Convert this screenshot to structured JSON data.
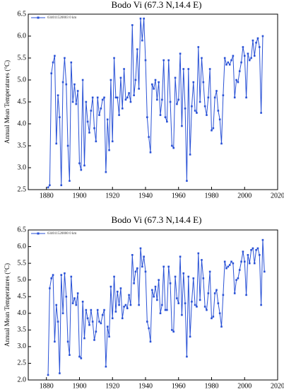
{
  "chart_data": [
    {
      "type": "line",
      "title": "Bodo Vi (67.3 N,14.4 E)",
      "y_label": "Annual Mean Temperatures (°C)",
      "x": [
        1881,
        1882,
        1883,
        1884,
        1885,
        1886,
        1887,
        1888,
        1889,
        1890,
        1891,
        1892,
        1893,
        1894,
        1895,
        1896,
        1897,
        1898,
        1899,
        1900,
        1901,
        1902,
        1903,
        1904,
        1905,
        1906,
        1907,
        1908,
        1909,
        1910,
        1911,
        1912,
        1913,
        1914,
        1915,
        1916,
        1917,
        1918,
        1919,
        1920,
        1921,
        1922,
        1923,
        1924,
        1925,
        1926,
        1927,
        1928,
        1929,
        1930,
        1931,
        1932,
        1933,
        1934,
        1935,
        1936,
        1937,
        1938,
        1939,
        1940,
        1941,
        1942,
        1943,
        1944,
        1945,
        1946,
        1947,
        1948,
        1949,
        1950,
        1951,
        1952,
        1953,
        1954,
        1955,
        1956,
        1957,
        1958,
        1959,
        1960,
        1961,
        1962,
        1963,
        1964,
        1965,
        1966,
        1967,
        1968,
        1969,
        1970,
        1971,
        1972,
        1973,
        1974,
        1975,
        1976,
        1977,
        1978,
        1979,
        1980,
        1981,
        1982,
        1983,
        1984,
        1985,
        1986,
        1987,
        1988,
        1989,
        1990,
        1991,
        1992,
        1993,
        1994,
        1995,
        1996,
        1997,
        1998,
        1999,
        2000,
        2001,
        2002,
        2003,
        2004,
        2005,
        2006,
        2007,
        2008,
        2009,
        2010,
        2011
      ],
      "series": [
        {
          "name": "634011520003 0 km",
          "color": "#2a52d6",
          "values": [
            2.55,
            2.6,
            5.15,
            5.4,
            5.55,
            3.55,
            4.65,
            4.15,
            2.6,
            4.95,
            5.5,
            4.9,
            3.5,
            2.7,
            5.4,
            4.5,
            4.9,
            4.45,
            4.75,
            3.1,
            2.95,
            5.0,
            3.05,
            4.5,
            4.05,
            3.8,
            4.3,
            4.6,
            3.9,
            3.6,
            4.6,
            4.2,
            4.35,
            4.55,
            4.6,
            2.9,
            4.1,
            3.4,
            5.0,
            3.6,
            5.5,
            4.6,
            4.6,
            4.2,
            5.05,
            4.35,
            5.25,
            4.55,
            4.6,
            4.7,
            4.5,
            6.25,
            4.65,
            5.0,
            5.7,
            4.8,
            6.4,
            5.9,
            6.4,
            5.45,
            4.15,
            3.7,
            3.35,
            4.9,
            4.8,
            5.0,
            4.55,
            4.95,
            4.2,
            4.55,
            5.45,
            4.15,
            4.05,
            5.45,
            4.5,
            3.5,
            3.45,
            5.05,
            4.45,
            4.55,
            5.6,
            3.95,
            5.25,
            4.35,
            2.7,
            5.25,
            3.3,
            4.4,
            4.95,
            4.3,
            4.25,
            5.75,
            4.5,
            5.5,
            4.95,
            4.4,
            4.2,
            4.6,
            5.25,
            3.85,
            3.9,
            4.6,
            4.75,
            4.3,
            4.1,
            3.55,
            4.65,
            5.5,
            5.35,
            5.4,
            5.35,
            5.45,
            5.55,
            4.6,
            5.0,
            4.95,
            5.2,
            5.4,
            5.75,
            5.55,
            4.6,
            5.6,
            5.45,
            5.5,
            5.9,
            5.55,
            5.85,
            5.95,
            5.75,
            4.25,
            6.0
          ]
        }
      ],
      "xlim": [
        1869,
        2020
      ],
      "xticks": [
        1880,
        1900,
        1920,
        1940,
        1960,
        1980,
        2000,
        2020
      ],
      "ylim": [
        2.5,
        6.5
      ],
      "yticks": [
        {
          "value": 2.5,
          "label": "2.5"
        },
        {
          "value": 3,
          "label": "3.0"
        },
        {
          "value": 3.5,
          "label": "3.5"
        },
        {
          "value": 4,
          "label": "4.0"
        },
        {
          "value": 4.5,
          "label": "4.5"
        },
        {
          "value": 5,
          "label": "5.0"
        },
        {
          "value": 5.5,
          "label": "5.5"
        },
        {
          "value": 6,
          "label": "6.0"
        },
        {
          "value": 6.5,
          "label": "6.5"
        }
      ]
    },
    {
      "type": "line",
      "title": "Bodo Vi (67.3 N,14.4 E)",
      "y_label": "Annual Mean Temperatures (°C)",
      "x": [
        1881,
        1882,
        1883,
        1884,
        1885,
        1886,
        1887,
        1888,
        1889,
        1890,
        1891,
        1892,
        1893,
        1894,
        1895,
        1896,
        1897,
        1898,
        1899,
        1900,
        1901,
        1902,
        1903,
        1904,
        1905,
        1906,
        1907,
        1908,
        1909,
        1910,
        1911,
        1912,
        1913,
        1914,
        1915,
        1916,
        1917,
        1918,
        1919,
        1920,
        1921,
        1922,
        1923,
        1924,
        1925,
        1926,
        1927,
        1928,
        1929,
        1930,
        1931,
        1932,
        1933,
        1934,
        1935,
        1936,
        1937,
        1938,
        1939,
        1940,
        1941,
        1942,
        1943,
        1944,
        1945,
        1946,
        1947,
        1948,
        1949,
        1950,
        1951,
        1952,
        1953,
        1954,
        1955,
        1956,
        1957,
        1958,
        1959,
        1960,
        1961,
        1962,
        1963,
        1964,
        1965,
        1966,
        1967,
        1968,
        1969,
        1970,
        1971,
        1972,
        1973,
        1974,
        1975,
        1976,
        1977,
        1978,
        1979,
        1980,
        1981,
        1982,
        1983,
        1984,
        1985,
        1986,
        1987,
        1988,
        1989,
        1990,
        1991,
        1992,
        1993,
        1994,
        1995,
        1996,
        1997,
        1998,
        1999,
        2000,
        2001,
        2002,
        2003,
        2004,
        2005,
        2006,
        2007,
        2008,
        2009,
        2010,
        2011,
        2012
      ],
      "series": [
        {
          "name": "634011520000 0 km",
          "color": "#2a52d6",
          "values": [
            2.15,
            4.75,
            5.05,
            5.15,
            3.15,
            4.25,
            3.75,
            2.2,
            5.15,
            4.0,
            5.2,
            4.5,
            3.15,
            2.75,
            5.1,
            4.3,
            4.45,
            4.25,
            4.6,
            2.7,
            2.65,
            4.35,
            3.25,
            4.1,
            3.85,
            3.65,
            4.1,
            3.75,
            3.2,
            3.45,
            4.1,
            3.75,
            3.7,
            3.95,
            4.1,
            2.4,
            3.6,
            3.3,
            4.8,
            3.85,
            5.1,
            4.05,
            4.65,
            4.25,
            4.75,
            3.85,
            4.2,
            4.25,
            4.15,
            4.55,
            4.25,
            5.75,
            4.9,
            5.25,
            5.35,
            4.25,
            5.95,
            5.4,
            5.7,
            5.25,
            3.75,
            3.55,
            3.15,
            4.7,
            4.5,
            4.8,
            4.4,
            5.0,
            4.0,
            4.25,
            5.4,
            4.1,
            4.1,
            5.4,
            4.9,
            3.5,
            3.45,
            5.1,
            4.45,
            4.3,
            5.7,
            3.95,
            5.2,
            4.3,
            2.7,
            5.1,
            3.3,
            4.35,
            5.05,
            4.25,
            4.2,
            5.8,
            4.4,
            5.6,
            5.05,
            4.2,
            4.1,
            4.6,
            5.25,
            3.85,
            3.9,
            4.6,
            4.7,
            4.3,
            4.0,
            3.6,
            4.55,
            5.55,
            5.35,
            5.4,
            5.45,
            5.55,
            5.5,
            4.6,
            5.0,
            5.05,
            5.3,
            5.55,
            5.85,
            5.55,
            4.55,
            5.75,
            5.5,
            5.9,
            5.95,
            5.5,
            5.9,
            5.95,
            5.75,
            4.25,
            6.2,
            5.25
          ]
        }
      ],
      "xlim": [
        1869,
        2020
      ],
      "xticks": [
        1880,
        1900,
        1920,
        1940,
        1960,
        1980,
        2000,
        2020
      ],
      "ylim": [
        2.0,
        6.5
      ],
      "yticks": [
        {
          "value": 2,
          "label": "2.0"
        },
        {
          "value": 2.5,
          "label": "2.5"
        },
        {
          "value": 3,
          "label": "3.0"
        },
        {
          "value": 3.5,
          "label": "3.5"
        },
        {
          "value": 4,
          "label": "4.0"
        },
        {
          "value": 4.5,
          "label": "4.5"
        },
        {
          "value": 5,
          "label": "5.0"
        },
        {
          "value": 5.5,
          "label": "5.5"
        },
        {
          "value": 6,
          "label": "6.0"
        },
        {
          "value": 6.5,
          "label": "6.5"
        }
      ]
    }
  ]
}
